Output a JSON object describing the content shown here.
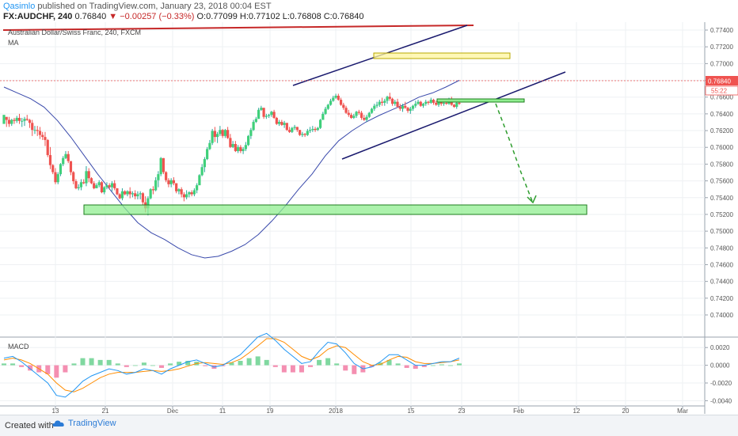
{
  "header": {
    "user": "Qasimlo",
    "published": "published on TradingView.com, January 23, 2018 00:04 EST",
    "symbol": "FX:AUDCHF, 240",
    "last": "0.76840",
    "change": "▼ −0.00257 (−0.33%)",
    "ohlc": "O:0.77099 H:0.77102 L:0.76808 C:0.76840"
  },
  "footer": {
    "created": "Created with",
    "brand": "TradingView"
  },
  "chart_data": [
    {
      "type": "candlestick",
      "title": "Australian Dollar/Swiss Franc, 240, FXCM",
      "indicator": "MA",
      "ylim": [
        0.74,
        0.775
      ],
      "y_ticks": [
        "0.77400",
        "0.77200",
        "0.77000",
        "0.76800",
        "0.76600",
        "0.76400",
        "0.76200",
        "0.76000",
        "0.75800",
        "0.75600",
        "0.75400",
        "0.75200",
        "0.75000",
        "0.74800",
        "0.74600",
        "0.74400",
        "0.74200",
        "0.74000"
      ],
      "last_price_label": "0.76840",
      "countdown_label": "55:22",
      "x_ticks": [
        "13",
        "21",
        "Dec",
        "11",
        "19",
        "2018",
        "15",
        "23",
        "Feb",
        "12",
        "20",
        "Mar"
      ],
      "ohlc_shape": [
        [
          -1.0,
          -0.3,
          -0.8,
          -0.1
        ],
        [
          -0.3,
          -0.5,
          -1.3,
          -0.6
        ],
        [
          -0.6,
          -0.3,
          -1.3,
          -1.0
        ],
        [
          -1.0,
          -0.5,
          -1.2,
          -0.6
        ],
        [
          -0.6,
          -0.4,
          -1.0,
          -0.7
        ],
        [
          -0.7,
          -0.2,
          -0.9,
          -0.4
        ],
        [
          -0.4,
          0.0,
          -1.0,
          -0.7
        ],
        [
          -0.7,
          -0.4,
          -1.3,
          -0.7
        ],
        [
          -0.7,
          -0.3,
          -1.2,
          -0.5
        ],
        [
          -0.5,
          -0.1,
          -0.7,
          -0.6
        ],
        [
          -0.6,
          -0.5,
          -1.4,
          -0.9
        ],
        [
          -0.9,
          -0.6,
          -2.2,
          -1.6
        ],
        [
          -1.6,
          -1.2,
          -2.0,
          -1.6
        ],
        [
          -1.6,
          -1.2,
          -2.2,
          -1.7
        ],
        [
          -1.7,
          -1.3,
          -2.5,
          -2.1
        ],
        [
          -2.1,
          -1.8,
          -2.6,
          -2.3
        ],
        [
          -2.3,
          -1.8,
          -3.2,
          -2.6
        ],
        [
          -2.6,
          -2.5,
          -4.3,
          -4.1
        ],
        [
          -4.1,
          -3.3,
          -5.5,
          -5.1
        ],
        [
          -5.1,
          -5.0,
          -6.0,
          -5.8
        ],
        [
          -5.8,
          -5.4,
          -7.0,
          -6.8
        ],
        [
          -6.8,
          -5.8,
          -7.0,
          -6.0
        ],
        [
          -6.0,
          -4.9,
          -6.2,
          -5.0
        ],
        [
          -5.0,
          -4.2,
          -5.2,
          -4.4
        ],
        [
          -4.4,
          -3.7,
          -4.5,
          -4.0
        ],
        [
          -4.0,
          -3.7,
          -4.9,
          -4.7
        ],
        [
          -4.7,
          -4.7,
          -6.1,
          -5.8
        ],
        [
          -5.8,
          -5.7,
          -7.0,
          -6.7
        ],
        [
          -6.7,
          -6.5,
          -7.5,
          -7.4
        ],
        [
          -7.4,
          -7.0,
          -7.6,
          -7.3
        ],
        [
          -7.3,
          -6.5,
          -7.6,
          -6.8
        ],
        [
          -6.8,
          -6.5,
          -7.0,
          -6.9
        ],
        [
          -6.9,
          -5.2,
          -7.2,
          -5.7
        ],
        [
          -5.7,
          -5.4,
          -6.8,
          -6.4
        ],
        [
          -6.4,
          -6.3,
          -7.0,
          -6.9
        ],
        [
          -6.9,
          -6.7,
          -7.5,
          -7.4
        ],
        [
          -7.4,
          -6.9,
          -7.4,
          -7.1
        ],
        [
          -7.1,
          -6.6,
          -7.3,
          -6.8
        ],
        [
          -6.8,
          -6.7,
          -7.9,
          -7.8
        ],
        [
          -7.8,
          -7.2,
          -8.0,
          -7.3
        ],
        [
          -7.3,
          -6.8,
          -7.5,
          -7.1
        ],
        [
          -7.1,
          -6.9,
          -7.5,
          -7.3
        ],
        [
          -7.3,
          -6.7,
          -7.7,
          -6.9
        ],
        [
          -6.9,
          -6.6,
          -7.6,
          -7.4
        ],
        [
          -7.4,
          -7.4,
          -8.1,
          -8.0
        ],
        [
          -8.0,
          -7.9,
          -8.5,
          -8.4
        ],
        [
          -8.4,
          -7.4,
          -8.6,
          -7.7
        ],
        [
          -7.7,
          -7.6,
          -8.1,
          -8.0
        ],
        [
          -8.0,
          -7.6,
          -8.2,
          -7.7
        ],
        [
          -7.7,
          -7.3,
          -8.4,
          -8.0
        ],
        [
          -8.0,
          -7.7,
          -8.3,
          -7.9
        ],
        [
          -7.9,
          -7.6,
          -8.5,
          -8.2
        ],
        [
          -8.2,
          -7.7,
          -8.5,
          -8.0
        ],
        [
          -8.0,
          -7.7,
          -8.5,
          -7.9
        ],
        [
          -7.9,
          -7.8,
          -9.1,
          -8.8
        ],
        [
          -8.8,
          -8.2,
          -9.8,
          -9.4
        ],
        [
          -9.4,
          -8.2,
          -10.1,
          -8.4
        ],
        [
          -8.4,
          -7.4,
          -8.5,
          -7.5
        ],
        [
          -7.5,
          -7.2,
          -8.0,
          -7.6
        ],
        [
          -7.6,
          -6.3,
          -7.7,
          -6.6
        ],
        [
          -6.6,
          -5.7,
          -7.3,
          -6.0
        ],
        [
          -6.0,
          -4.3,
          -6.2,
          -4.4
        ],
        [
          -4.4,
          -4.4,
          -6.0,
          -5.8
        ],
        [
          -5.8,
          -5.7,
          -6.8,
          -6.6
        ],
        [
          -6.6,
          -6.4,
          -7.3,
          -7.0
        ],
        [
          -7.0,
          -6.4,
          -7.3,
          -6.6
        ],
        [
          -6.6,
          -6.3,
          -7.1,
          -6.9
        ],
        [
          -6.9,
          -6.9,
          -7.9,
          -7.7
        ],
        [
          -7.7,
          -7.4,
          -8.0,
          -7.5
        ],
        [
          -7.5,
          -7.3,
          -8.3,
          -8.0
        ],
        [
          -8.0,
          -7.8,
          -8.7,
          -8.3
        ],
        [
          -8.3,
          -7.6,
          -8.5,
          -8.0
        ],
        [
          -8.0,
          -7.7,
          -8.3,
          -7.8
        ],
        [
          -7.8,
          -7.6,
          -8.2,
          -8.0
        ],
        [
          -8.0,
          -7.4,
          -8.2,
          -7.6
        ],
        [
          -7.6,
          -6.9,
          -7.9,
          -7.1
        ],
        [
          -7.1,
          -6.0,
          -7.1,
          -6.1
        ],
        [
          -6.1,
          -5.0,
          -6.2,
          -5.3
        ],
        [
          -5.3,
          -4.3,
          -5.8,
          -4.5
        ],
        [
          -4.5,
          -3.3,
          -4.6,
          -3.5
        ],
        [
          -3.5,
          -2.6,
          -3.6,
          -2.9
        ],
        [
          -2.9,
          -1.5,
          -3.1,
          -1.7
        ],
        [
          -1.7,
          -1.3,
          -2.8,
          -2.3
        ],
        [
          -2.3,
          -1.8,
          -2.9,
          -2.0
        ],
        [
          -2.0,
          -1.2,
          -2.2,
          -1.6
        ],
        [
          -1.6,
          -1.5,
          -2.4,
          -2.2
        ],
        [
          -2.2,
          -1.5,
          -2.4,
          -1.6
        ],
        [
          -1.6,
          -1.3,
          -2.5,
          -2.4
        ],
        [
          -2.4,
          -2.0,
          -3.4,
          -3.3
        ],
        [
          -3.3,
          -2.7,
          -3.4,
          -3.0
        ],
        [
          -3.0,
          -2.7,
          -3.8,
          -3.7
        ],
        [
          -3.7,
          -3.1,
          -3.9,
          -3.3
        ],
        [
          -3.3,
          -3.1,
          -3.9,
          -3.7
        ],
        [
          -3.7,
          -3.3,
          -4.0,
          -3.5
        ],
        [
          -3.5,
          -2.8,
          -3.7,
          -3.1
        ],
        [
          -3.1,
          -2.1,
          -3.2,
          -2.2
        ],
        [
          -2.2,
          -1.4,
          -2.5,
          -1.6
        ],
        [
          -1.6,
          -0.6,
          -1.7,
          -0.8
        ],
        [
          -0.8,
          -0.3,
          -0.9,
          -0.5
        ],
        [
          -0.5,
          0.6,
          -0.5,
          0.4
        ],
        [
          0.4,
          0.8,
          0.3,
          0.6
        ],
        [
          0.6,
          0.6,
          -0.5,
          -0.3
        ],
        [
          -0.3,
          0.0,
          -0.5,
          -0.2
        ],
        [
          -0.2,
          0.0,
          -0.4,
          -0.1
        ],
        [
          -0.1,
          0.3,
          -0.3,
          0.2
        ],
        [
          0.2,
          0.4,
          -0.5,
          -0.4
        ],
        [
          -0.4,
          -0.3,
          -1.1,
          -1.0
        ],
        [
          -1.0,
          -0.6,
          -1.2,
          -0.8
        ],
        [
          -0.8,
          -0.6,
          -1.2,
          -1.1
        ],
        [
          -1.1,
          -0.7,
          -1.4,
          -0.9
        ],
        [
          -0.9,
          -0.9,
          -1.7,
          -1.6
        ],
        [
          -1.6,
          -1.3,
          -1.9,
          -1.8
        ],
        [
          -1.8,
          -1.3,
          -1.9,
          -1.4
        ],
        [
          -1.4,
          -1.1,
          -1.6,
          -1.3
        ],
        [
          -1.3,
          -1.3,
          -1.8,
          -1.6
        ],
        [
          -1.6,
          -1.6,
          -2.2,
          -2.1
        ],
        [
          -2.1,
          -1.8,
          -2.3,
          -2.0
        ],
        [
          -2.0,
          -1.9,
          -2.3,
          -2.1
        ],
        [
          -2.1,
          -1.5,
          -2.2,
          -1.7
        ],
        [
          -1.7,
          -1.3,
          -1.9,
          -1.6
        ],
        [
          -1.6,
          -1.2,
          -1.8,
          -1.5
        ],
        [
          -1.5,
          -1.3,
          -1.8,
          -1.6
        ],
        [
          -1.6,
          -1.3,
          -1.7,
          -1.4
        ],
        [
          -1.4,
          -0.5,
          -1.5,
          -0.6
        ],
        [
          -0.6,
          0.2,
          -0.6,
          0.0
        ],
        [
          0.0,
          0.7,
          -0.1,
          0.5
        ],
        [
          0.5,
          1.0,
          0.4,
          0.9
        ],
        [
          0.9,
          1.5,
          0.8,
          1.3
        ],
        [
          1.3,
          1.8,
          1.2,
          1.6
        ],
        [
          1.6,
          2.0,
          1.5,
          1.8
        ],
        [
          1.8,
          2.0,
          1.3,
          1.4
        ],
        [
          1.4,
          1.6,
          0.8,
          0.9
        ],
        [
          0.9,
          1.1,
          0.4,
          0.6
        ],
        [
          0.6,
          0.8,
          0.0,
          0.1
        ],
        [
          0.1,
          0.4,
          -0.3,
          -0.1
        ],
        [
          -0.1,
          0.1,
          -0.5,
          -0.4
        ],
        [
          -0.4,
          0.0,
          -0.5,
          -0.2
        ],
        [
          -0.2,
          0.3,
          -0.4,
          0.2
        ],
        [
          0.2,
          0.4,
          -0.1,
          0.1
        ],
        [
          0.1,
          0.3,
          -0.6,
          -0.4
        ],
        [
          -0.4,
          -0.1,
          -0.7,
          -0.6
        ],
        [
          -0.6,
          -0.1,
          -0.8,
          -0.3
        ],
        [
          -0.3,
          0.2,
          -0.4,
          0.1
        ],
        [
          0.1,
          0.6,
          0.0,
          0.5
        ],
        [
          0.5,
          1.0,
          0.3,
          0.8
        ],
        [
          0.8,
          1.2,
          0.6,
          0.9
        ],
        [
          0.9,
          1.4,
          0.7,
          1.2
        ],
        [
          1.2,
          1.6,
          0.8,
          1.1
        ],
        [
          1.1,
          1.5,
          0.8,
          1.3
        ],
        [
          1.3,
          1.8,
          1.0,
          1.7
        ],
        [
          1.7,
          2.1,
          1.3,
          1.5
        ],
        [
          1.5,
          1.6,
          0.8,
          1.0
        ],
        [
          1.0,
          1.4,
          0.8,
          1.2
        ],
        [
          1.2,
          1.5,
          0.6,
          0.7
        ],
        [
          0.7,
          1.0,
          0.3,
          0.5
        ],
        [
          0.5,
          1.0,
          0.2,
          0.8
        ],
        [
          0.8,
          1.2,
          0.5,
          0.6
        ],
        [
          0.6,
          0.7,
          0.1,
          0.3
        ],
        [
          0.3,
          0.7,
          0.0,
          0.5
        ],
        [
          0.5,
          0.9,
          0.3,
          0.8
        ],
        [
          0.8,
          1.3,
          0.6,
          1.0
        ],
        [
          1.0,
          1.4,
          0.9,
          1.2
        ],
        [
          1.2,
          1.3,
          0.7,
          0.8
        ],
        [
          0.8,
          1.1,
          0.6,
          1.0
        ],
        [
          1.0,
          1.4,
          0.8,
          1.2
        ],
        [
          1.2,
          1.3,
          0.9,
          1.1
        ],
        [
          1.1,
          1.6,
          1.0,
          1.4
        ],
        [
          1.4,
          1.5,
          0.9,
          1.1
        ],
        [
          1.1,
          1.3,
          0.8,
          0.9
        ],
        [
          0.9,
          1.3,
          0.7,
          1.2
        ],
        [
          1.2,
          1.3,
          0.8,
          1.0
        ],
        [
          1.0,
          1.2,
          0.8,
          1.1
        ],
        [
          1.1,
          1.4,
          0.9,
          1.0
        ],
        [
          1.0,
          1.6,
          0.9,
          1.5
        ],
        [
          1.5,
          1.7,
          0.8,
          0.9
        ],
        [
          0.9,
          1.0,
          0.6,
          0.7
        ],
        [
          0.7,
          1.2,
          0.5,
          1.1
        ],
        [
          1.1,
          1.3,
          0.9,
          1.0
        ]
      ],
      "moving_average": [
        0.7672,
        0.7665,
        0.7658,
        0.7648,
        0.7632,
        0.7612,
        0.759,
        0.7568,
        0.7548,
        0.7528,
        0.751,
        0.7498,
        0.749,
        0.748,
        0.7472,
        0.7468,
        0.747,
        0.7476,
        0.7484,
        0.7496,
        0.7512,
        0.753,
        0.755,
        0.7568,
        0.759,
        0.7608,
        0.762,
        0.763,
        0.7638,
        0.7645,
        0.7652,
        0.766,
        0.7665,
        0.7672,
        0.768
      ]
    },
    {
      "type": "macd",
      "title": "MACD",
      "ylim": [
        -0.0045,
        0.003
      ],
      "y_ticks": [
        "0.0020",
        "0.0000",
        "-0.0020",
        "-0.0040"
      ],
      "macd_line": [
        0.0008,
        0.001,
        0.0004,
        -0.0004,
        -0.0012,
        -0.002,
        -0.0034,
        -0.0036,
        -0.0028,
        -0.0018,
        -0.0012,
        -0.0008,
        -0.0004,
        -0.0006,
        -0.001,
        -0.0008,
        -0.0004,
        -0.0006,
        -0.001,
        -0.0004,
        0.0,
        0.0004,
        0.0006,
        0.0002,
        -0.0002,
        0.0,
        0.0006,
        0.0012,
        0.0022,
        0.0032,
        0.0036,
        0.0028,
        0.0018,
        0.001,
        0.0002,
        0.0004,
        0.0016,
        0.0026,
        0.0024,
        0.0014,
        0.0002,
        -0.0004,
        -0.0002,
        0.0004,
        0.0012,
        0.0012,
        0.0006,
        0.0,
        0.0,
        0.0002,
        0.0004,
        0.0004,
        0.0008
      ],
      "signal_line": [
        0.0006,
        0.0008,
        0.0006,
        0.0002,
        -0.0004,
        -0.001,
        -0.002,
        -0.0028,
        -0.003,
        -0.0026,
        -0.002,
        -0.0014,
        -0.001,
        -0.0008,
        -0.0008,
        -0.0008,
        -0.0007,
        -0.0006,
        -0.0007,
        -0.0006,
        -0.0004,
        -0.0001,
        0.0002,
        0.0003,
        0.0002,
        0.0001,
        0.0003,
        0.0007,
        0.0014,
        0.0022,
        0.003,
        0.003,
        0.0026,
        0.0018,
        0.001,
        0.0006,
        0.001,
        0.0018,
        0.0022,
        0.002,
        0.0012,
        0.0004,
        0.0,
        0.0001,
        0.0006,
        0.001,
        0.0009,
        0.0004,
        0.0002,
        0.0002,
        0.0003,
        0.0004,
        0.0006
      ],
      "histogram": [
        0.0002,
        0.0002,
        -0.0002,
        -0.0006,
        -0.0008,
        -0.001,
        -0.0014,
        -0.0008,
        0.0002,
        0.0008,
        0.0008,
        0.0006,
        0.0006,
        0.0002,
        -0.0002,
        0.0,
        0.0003,
        0.0,
        -0.0003,
        0.0002,
        0.0004,
        0.0005,
        0.0004,
        -0.0001,
        -0.0004,
        -0.0001,
        0.0003,
        0.0005,
        0.0008,
        0.001,
        0.0006,
        -0.0002,
        -0.0008,
        -0.0008,
        -0.0008,
        -0.0002,
        0.0006,
        0.0008,
        0.0002,
        -0.0006,
        -0.001,
        -0.0008,
        -0.0002,
        0.0003,
        0.0006,
        0.0002,
        -0.0003,
        -0.0004,
        -0.0002,
        0.0,
        0.0001,
        0.0,
        0.0002
      ]
    }
  ],
  "colors": {
    "up": "#26a69a",
    "up_fill": "#3fd07a",
    "down": "#ef5350",
    "ma": "#3949ab",
    "macd": "#2196f3",
    "signal": "#ff8c00",
    "hist_pos": "#80d8a0",
    "hist_neg": "#f48fb1",
    "channel": "#1a1a6e",
    "resistance": "#c62828",
    "support_zone": "#90ee90",
    "top_zone": "#fff59d",
    "arrow": "#2e9d2e",
    "price_tag": "#ef5350"
  }
}
